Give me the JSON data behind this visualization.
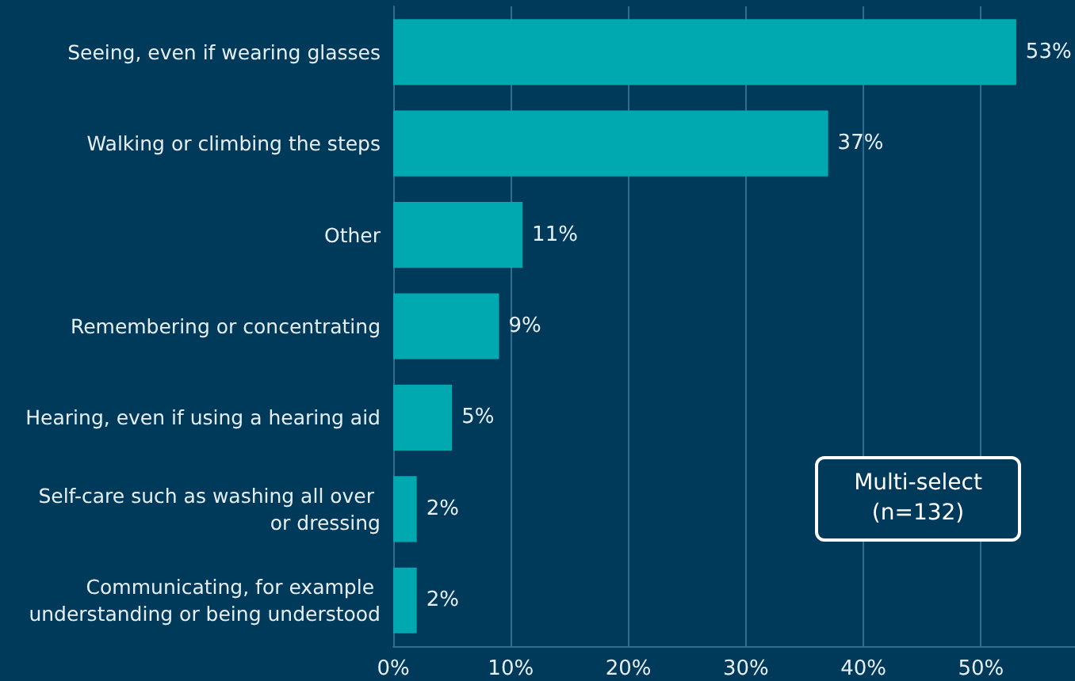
{
  "chart_data": {
    "type": "bar",
    "orientation": "horizontal",
    "categories": [
      "Seeing, even if wearing glasses",
      "Walking or climbing the steps",
      "Other",
      "Remembering or concentrating",
      "Hearing, even if using a hearing aid",
      "Self-care such as washing all over or dressing",
      "Communicating, for example understanding or being understood"
    ],
    "values": [
      53,
      37,
      11,
      9,
      5,
      2,
      2
    ],
    "value_labels": [
      "53%",
      "37%",
      "11%",
      "9%",
      "5%",
      "2%",
      "2%"
    ],
    "color": "#00a9b0",
    "xlim": [
      0,
      58
    ],
    "xticks": [
      {
        "value": 0,
        "label": "0%"
      },
      {
        "value": 10,
        "label": "10%"
      },
      {
        "value": 20,
        "label": "20%"
      },
      {
        "value": 30,
        "label": "30%"
      },
      {
        "value": 40,
        "label": "40%"
      },
      {
        "value": 50,
        "label": "50%"
      }
    ],
    "grid": "x",
    "annotations": [
      "Multi-select (n=132)"
    ]
  }
}
